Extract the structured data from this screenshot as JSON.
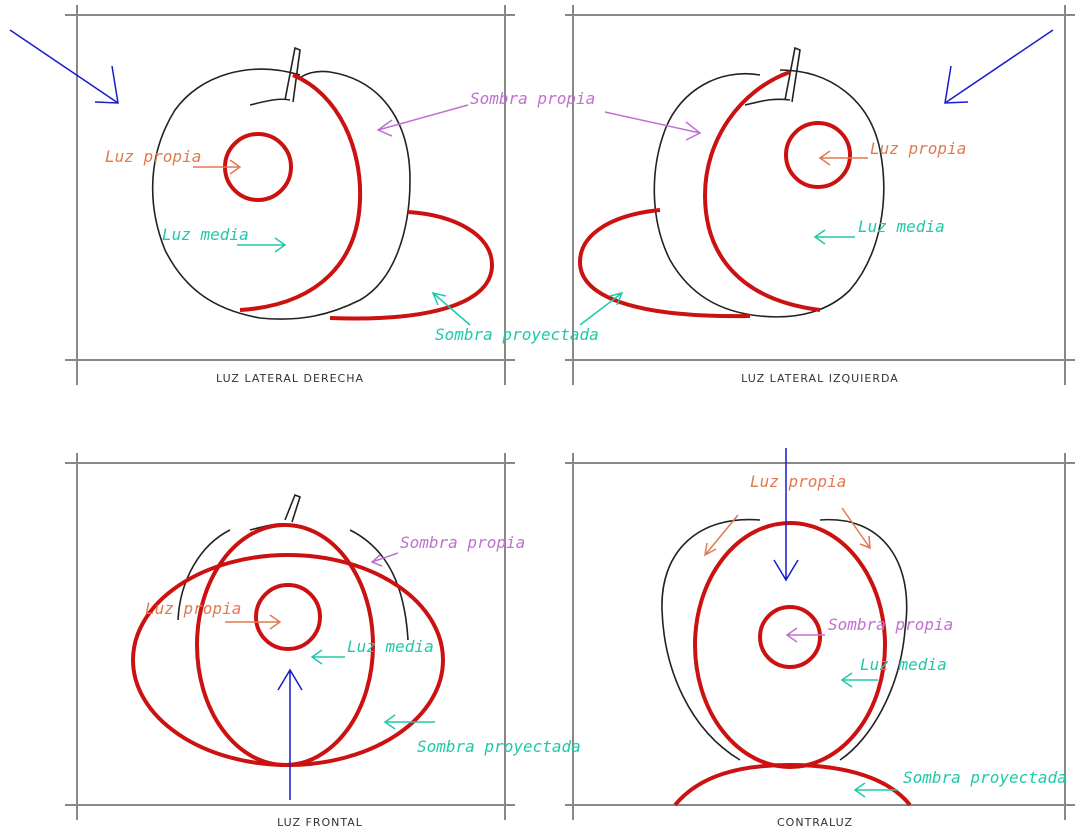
{
  "panels": [
    {
      "caption": "LUZ LATERAL DERECHA",
      "labels": [
        "Sombra propia",
        "Luz propia",
        "Luz media",
        "Sombra proyectada"
      ]
    },
    {
      "caption": "LUZ LATERAL IZQUIERDA",
      "labels": [
        "Luz propia",
        "Luz media"
      ]
    },
    {
      "caption": "LUZ FRONTAL",
      "labels": [
        "Sombra propia",
        "Luz propia",
        "Luz media",
        "Sombra proyectada"
      ]
    },
    {
      "caption": "CONTRALUZ",
      "labels": [
        "Luz propia",
        "Sombra propia",
        "Luz media",
        "Sombra proyectada"
      ]
    }
  ]
}
